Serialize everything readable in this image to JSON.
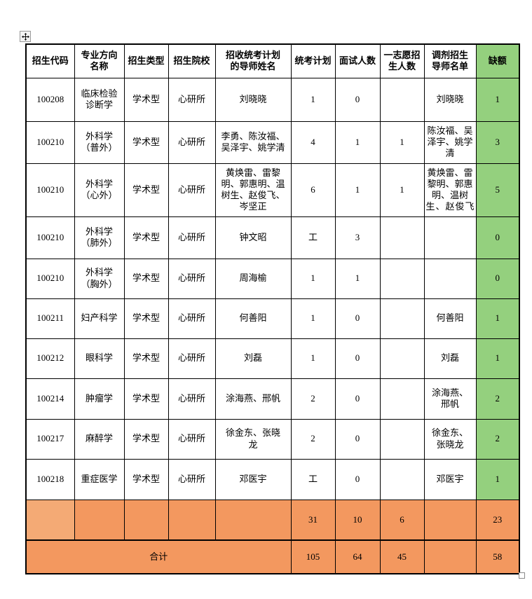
{
  "colors": {
    "vacancy_green": "#94d07e",
    "summary_orange": "#f3985f",
    "summary_orange_light": "#f4aa75",
    "border_black": "#000000"
  },
  "icons": {
    "move_handle": "four-direction-move-arrow",
    "resize_handle": "table-resize-square"
  },
  "table": {
    "headers": [
      "招生代码",
      "专业方向\n名称",
      "招生类型",
      "招生院校",
      "招收统考计划\n的导师姓名",
      "统考计划",
      "面试人数",
      "一志愿招\n生人数",
      "调剂招生\n导师名单",
      "缺额"
    ],
    "rows": [
      {
        "values": [
          "100208",
          "临床检验\n诊断学",
          "学术型",
          "心研所",
          "刘晓晓",
          "1",
          "0",
          "",
          "刘晓晓",
          "1"
        ],
        "big_cols": []
      },
      {
        "values": [
          "100210",
          "外科学\n（普外）",
          "学术型",
          "心研所",
          "李勇、陈汝福、吴泽宇、姚学清",
          "4",
          "1",
          "1",
          "陈汝福、吴泽宇、姚学清",
          "3"
        ],
        "big_cols": []
      },
      {
        "values": [
          "100210",
          "外科学\n（心外）",
          "学术型",
          "心研所",
          "黄焕雷、雷黎明、郭惠明、温树生、赵俊飞、岑坚正",
          "6",
          "1",
          "1",
          "黄焕雷、雷黎明、郭惠明、温树生、赵俊飞",
          "5"
        ],
        "big_cols": [
          5
        ],
        "justify_adjust": true
      },
      {
        "values": [
          "100210",
          "外科学\n（肺外）",
          "学术型",
          "心研所",
          "钟文昭",
          "工",
          "3",
          "",
          "",
          "0"
        ],
        "big_cols": [
          5,
          6
        ]
      },
      {
        "values": [
          "100210",
          "外科学\n（胸外）",
          "学术型",
          "心研所",
          "周海榆",
          "1",
          "1",
          "",
          "",
          "0"
        ],
        "big_cols": []
      },
      {
        "values": [
          "100211",
          "妇产科学",
          "学术型",
          "心研所",
          "何善阳",
          "1",
          "0",
          "",
          "何善阳",
          "1"
        ],
        "big_cols": []
      },
      {
        "values": [
          "100212",
          "眼科学",
          "学术型",
          "心研所",
          "刘磊",
          "1",
          "0",
          "",
          "刘磊",
          "1"
        ],
        "big_cols": [
          6
        ]
      },
      {
        "values": [
          "100214",
          "肿瘤学",
          "学术型",
          "心研所",
          "涂海燕、邢帆",
          "2",
          "0",
          "",
          "涂海燕、\n邢帆",
          "2"
        ],
        "big_cols": []
      },
      {
        "values": [
          "100217",
          "麻醉学",
          "学术型",
          "心研所",
          "徐金东、张晓\n龙",
          "2",
          "0",
          "",
          "徐金东、\n张晓龙",
          "2"
        ],
        "big_cols": [
          6
        ]
      },
      {
        "values": [
          "100218",
          "重症医学",
          "学术型",
          "心研所",
          "邓医宇",
          "工",
          "0",
          "",
          "邓医宇",
          "1"
        ],
        "big_cols": [
          5,
          6
        ]
      }
    ],
    "subtotal": {
      "values": [
        "",
        "",
        "",
        "",
        "",
        "31",
        "10",
        "6",
        "",
        "23"
      ],
      "big_cols": [
        5,
        7
      ]
    },
    "total": {
      "label": "合计",
      "values": [
        "105",
        "64",
        "45",
        "",
        "58"
      ]
    }
  }
}
